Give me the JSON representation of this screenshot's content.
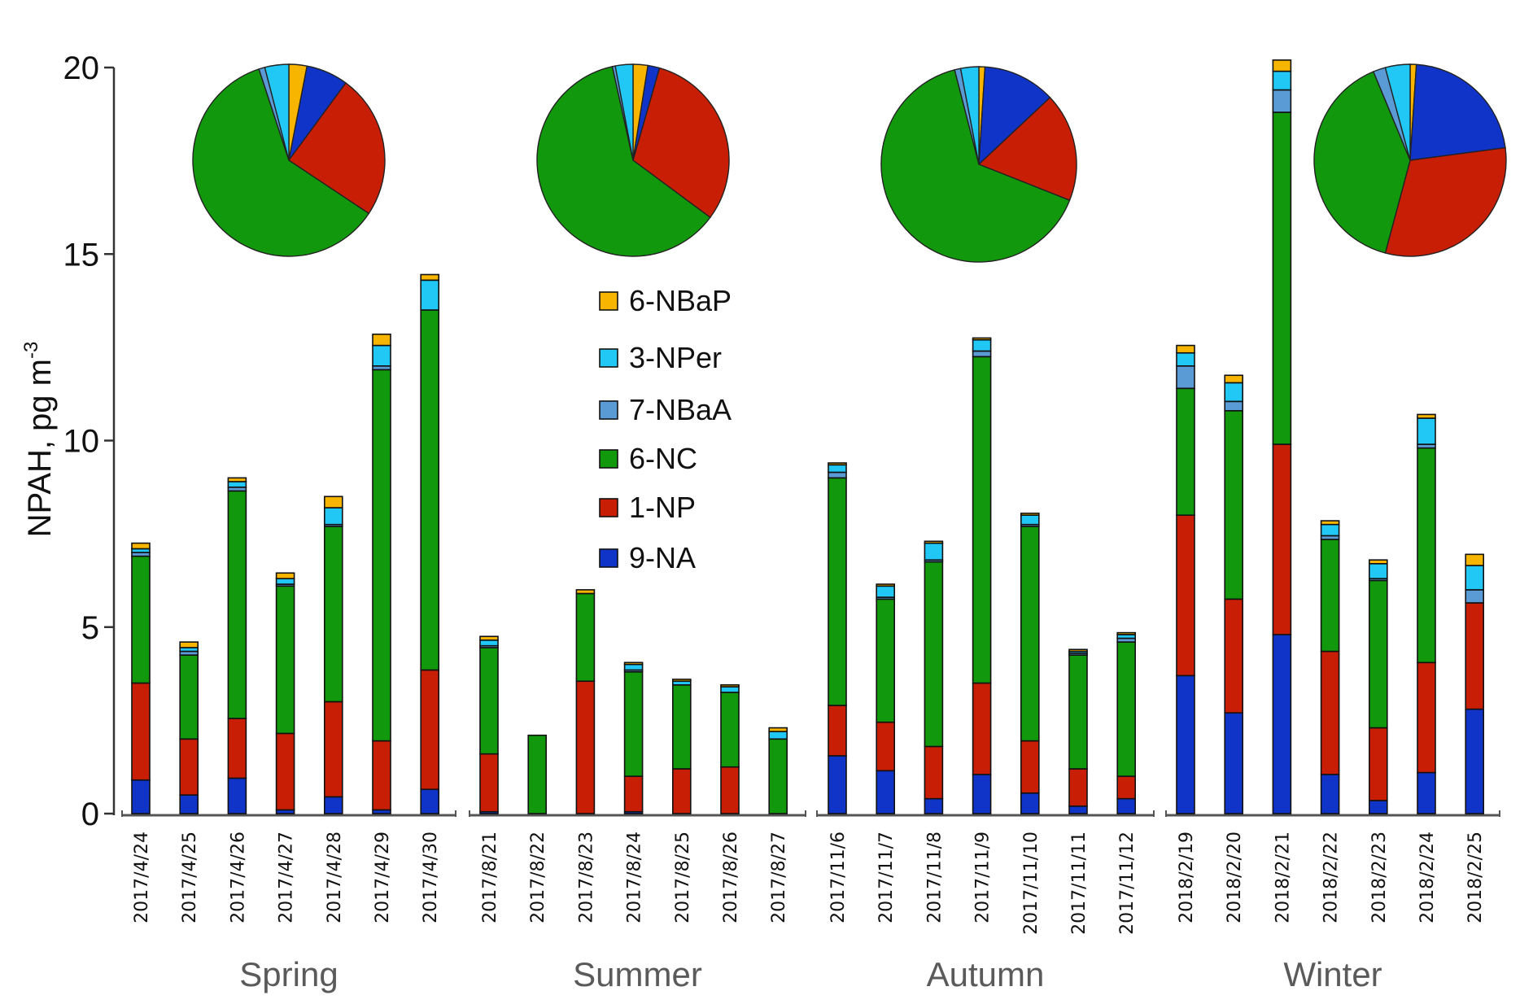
{
  "chart_data": [
    {
      "type": "bar",
      "stacked": true,
      "ylabel": "NPAH, pg m",
      "ylabel_superscript": "-3",
      "ylim": [
        0,
        20
      ],
      "yticks": [
        0,
        5,
        10,
        15,
        20
      ],
      "series": [
        {
          "name": "9-NA",
          "color": "#1034c8"
        },
        {
          "name": "1-NP",
          "color": "#c81e06"
        },
        {
          "name": "6-NC",
          "color": "#12980c"
        },
        {
          "name": "7-NBaA",
          "color": "#5b9bd5"
        },
        {
          "name": "3-NPer",
          "color": "#22c8f5"
        },
        {
          "name": "6-NBaP",
          "color": "#f7b500"
        }
      ],
      "groups": [
        {
          "label": "Spring",
          "pie": [
            7,
            24,
            60,
            1,
            4,
            3
          ],
          "bars": [
            {
              "date": "2017/4/24",
              "values": [
                0.9,
                2.6,
                3.4,
                0.1,
                0.1,
                0.15
              ]
            },
            {
              "date": "2017/4/25",
              "values": [
                0.5,
                1.5,
                2.25,
                0.1,
                0.1,
                0.15
              ]
            },
            {
              "date": "2017/4/26",
              "values": [
                0.95,
                1.6,
                6.1,
                0.1,
                0.15,
                0.1
              ]
            },
            {
              "date": "2017/4/27",
              "values": [
                0.1,
                2.05,
                3.95,
                0.05,
                0.15,
                0.15
              ]
            },
            {
              "date": "2017/4/28",
              "values": [
                0.45,
                2.55,
                4.7,
                0.05,
                0.45,
                0.3
              ]
            },
            {
              "date": "2017/4/29",
              "values": [
                0.1,
                1.85,
                9.95,
                0.1,
                0.55,
                0.3
              ]
            },
            {
              "date": "2017/4/30",
              "values": [
                0.65,
                3.2,
                9.65,
                0.0,
                0.8,
                0.15
              ]
            }
          ]
        },
        {
          "label": "Summer",
          "pie": [
            2,
            31,
            62,
            0.5,
            3,
            2.5
          ],
          "bars": [
            {
              "date": "2017/8/21",
              "values": [
                0.05,
                1.55,
                2.85,
                0.05,
                0.15,
                0.1
              ]
            },
            {
              "date": "2017/8/22",
              "values": [
                0.0,
                0.0,
                2.1,
                0.0,
                0.0,
                0.0
              ]
            },
            {
              "date": "2017/8/23",
              "values": [
                0.0,
                3.55,
                2.35,
                0.0,
                0.0,
                0.1
              ]
            },
            {
              "date": "2017/8/24",
              "values": [
                0.05,
                0.95,
                2.8,
                0.05,
                0.15,
                0.05
              ]
            },
            {
              "date": "2017/8/25",
              "values": [
                0.0,
                1.2,
                2.25,
                0.0,
                0.1,
                0.05
              ]
            },
            {
              "date": "2017/8/26",
              "values": [
                0.0,
                1.25,
                2.0,
                0.0,
                0.15,
                0.05
              ]
            },
            {
              "date": "2017/8/27",
              "values": [
                0.0,
                0.0,
                2.0,
                0.0,
                0.2,
                0.1
              ]
            }
          ]
        },
        {
          "label": "Autumn",
          "pie": [
            12,
            18,
            65,
            1,
            3,
            1
          ],
          "bars": [
            {
              "date": "2017/11/6",
              "values": [
                1.55,
                1.35,
                6.1,
                0.15,
                0.2,
                0.05
              ]
            },
            {
              "date": "2017/11/7",
              "values": [
                1.15,
                1.3,
                3.3,
                0.05,
                0.3,
                0.05
              ]
            },
            {
              "date": "2017/11/8",
              "values": [
                0.4,
                1.4,
                4.95,
                0.05,
                0.45,
                0.05
              ]
            },
            {
              "date": "2017/11/9",
              "values": [
                1.05,
                2.45,
                8.75,
                0.15,
                0.3,
                0.05
              ]
            },
            {
              "date": "2017/11/10",
              "values": [
                0.55,
                1.4,
                5.75,
                0.05,
                0.25,
                0.05
              ]
            },
            {
              "date": "2017/11/11",
              "values": [
                0.2,
                1.0,
                3.05,
                0.05,
                0.05,
                0.05
              ]
            },
            {
              "date": "2017/11/12",
              "values": [
                0.4,
                0.6,
                3.6,
                0.1,
                0.1,
                0.05
              ]
            }
          ]
        },
        {
          "label": "Winter",
          "pie": [
            21,
            30,
            38,
            2,
            4,
            1
          ],
          "bars": [
            {
              "date": "2018/2/19",
              "values": [
                3.7,
                4.3,
                3.4,
                0.6,
                0.35,
                0.2
              ]
            },
            {
              "date": "2018/2/20",
              "values": [
                2.7,
                3.05,
                5.05,
                0.25,
                0.5,
                0.2
              ]
            },
            {
              "date": "2018/2/21",
              "values": [
                4.8,
                5.1,
                8.9,
                0.6,
                0.5,
                0.3
              ]
            },
            {
              "date": "2018/2/22",
              "values": [
                1.05,
                3.3,
                3.0,
                0.1,
                0.3,
                0.1
              ]
            },
            {
              "date": "2018/2/23",
              "values": [
                0.35,
                1.95,
                3.95,
                0.05,
                0.4,
                0.1
              ]
            },
            {
              "date": "2018/2/24",
              "values": [
                1.1,
                2.95,
                5.75,
                0.1,
                0.7,
                0.1
              ]
            },
            {
              "date": "2018/2/25",
              "values": [
                2.8,
                2.85,
                0.0,
                0.35,
                0.65,
                0.3
              ]
            }
          ]
        }
      ],
      "legend": [
        "6-NBaP",
        "3-NPer",
        "7-NBaA",
        "6-NC",
        "1-NP",
        "9-NA"
      ]
    }
  ]
}
